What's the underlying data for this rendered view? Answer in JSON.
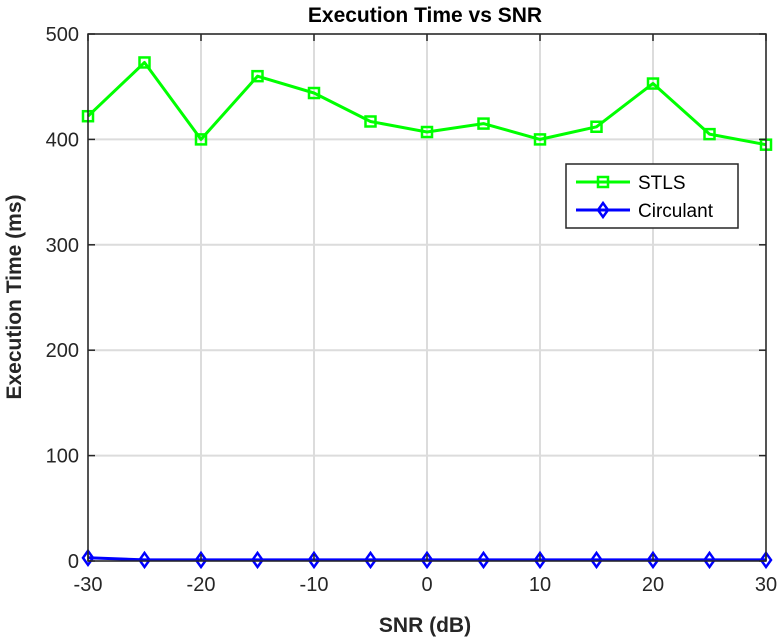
{
  "chart_data": {
    "type": "line",
    "title": "Execution Time vs SNR",
    "xlabel": "SNR (dB)",
    "ylabel": "Execution Time (ms)",
    "xlim": [
      -30,
      30
    ],
    "ylim": [
      0,
      500
    ],
    "xticks": [
      -30,
      -20,
      -10,
      0,
      10,
      20,
      30
    ],
    "yticks": [
      0,
      100,
      200,
      300,
      400,
      500
    ],
    "x": [
      -30,
      -25,
      -20,
      -15,
      -10,
      -5,
      0,
      5,
      10,
      15,
      20,
      25,
      30
    ],
    "grid": true,
    "legend_position": "upper-right",
    "series": [
      {
        "name": "STLS",
        "color": "#00ff00",
        "marker": "square",
        "values": [
          422,
          473,
          400,
          460,
          444,
          417,
          407,
          415,
          400,
          412,
          453,
          405,
          395
        ]
      },
      {
        "name": "Circulant",
        "color": "#0000ff",
        "marker": "diamond",
        "values": [
          3,
          1,
          1,
          1,
          1,
          1,
          1,
          1,
          1,
          1,
          1,
          1,
          1
        ]
      }
    ]
  }
}
